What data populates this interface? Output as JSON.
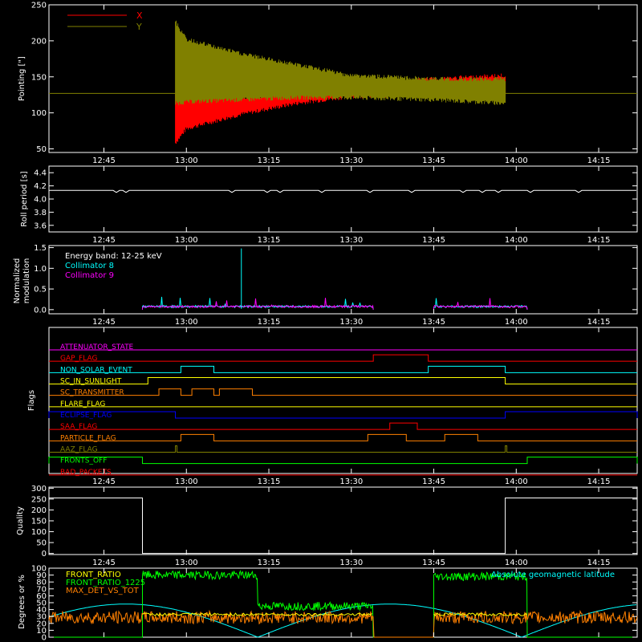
{
  "time_ticks": [
    "12:45",
    "13:00",
    "13:15",
    "13:30",
    "13:45",
    "14:00",
    "14:15"
  ],
  "time_range": [
    "12:35",
    "14:22"
  ],
  "chart_data": [
    {
      "id": "pointing",
      "type": "line",
      "ylabel": "Pointing [\"]",
      "ylim": [
        45,
        250
      ],
      "yticks": [
        50,
        100,
        150,
        200,
        250
      ],
      "series": [
        {
          "name": "X",
          "color": "#ff0000",
          "envelope": {
            "t": [
              "12:58",
              "13:00",
              "13:10",
              "13:20",
              "13:30",
              "13:45",
              "13:58"
            ],
            "lo": [
              55,
              75,
              95,
              110,
              120,
              122,
              122
            ],
            "hi": [
              130,
              125,
              125,
              130,
              140,
              150,
              155
            ]
          }
        },
        {
          "name": "Y",
          "color": "#808000",
          "envelope": {
            "t": [
              "12:58",
              "13:00",
              "13:10",
              "13:20",
              "13:30",
              "13:45",
              "13:58"
            ],
            "lo": [
              110,
              112,
              115,
              118,
              118,
              115,
              110
            ],
            "hi": [
              230,
              205,
              185,
              170,
              155,
              150,
              150
            ]
          }
        }
      ],
      "baseline": 127,
      "active": [
        "12:58",
        "13:58"
      ]
    },
    {
      "id": "roll",
      "type": "line",
      "ylabel": "Roll period [s]",
      "ylim": [
        3.5,
        4.5
      ],
      "yticks": [
        "3.6",
        "3.8",
        "4.0",
        "4.2",
        "4.4"
      ],
      "series": [
        {
          "name": "",
          "color": "#ffffff",
          "value": 4.13
        }
      ]
    },
    {
      "id": "modulation",
      "type": "line",
      "ylabel_lines": [
        "Normalized",
        "modulation"
      ],
      "ylim": [
        -0.1,
        1.55
      ],
      "yticks": [
        "0.0",
        "0.5",
        "1.0",
        "1.5"
      ],
      "annotations": [
        "Energy band: 12-25 keV",
        "Collimator 8",
        "Collimator 9"
      ],
      "series": [
        {
          "name": "Collimator 8",
          "color": "#00ffff",
          "segments": [
            [
              "12:52",
              "13:34"
            ],
            [
              "13:45",
              "14:02"
            ]
          ],
          "level": 0.05
        },
        {
          "name": "Collimator 9",
          "color": "#ff00ff",
          "segments": [
            [
              "12:52",
              "13:34"
            ],
            [
              "13:45",
              "14:02"
            ]
          ],
          "level": 0.05
        }
      ],
      "spike": {
        "t": "13:10",
        "value": 1.48
      }
    },
    {
      "id": "flags",
      "type": "line",
      "ylabel": "Flags",
      "flags": [
        {
          "name": "ATTENUATOR_STATE",
          "color": "#ff00ff",
          "high": []
        },
        {
          "name": "GAP_FLAG",
          "color": "#ff0000",
          "high": [
            [
              "13:34",
              "13:44"
            ]
          ]
        },
        {
          "name": "NON_SOLAR_EVENT",
          "color": "#00ffff",
          "high": [
            [
              "12:59",
              "13:05"
            ],
            [
              "13:44",
              "13:58"
            ]
          ]
        },
        {
          "name": "SC_IN_SUNLIGHT",
          "color": "#ffff00",
          "high": [
            [
              "12:53",
              "13:58"
            ]
          ]
        },
        {
          "name": "SC_TRANSMITTER",
          "color": "#ff8000",
          "high": [
            [
              "12:55",
              "12:59"
            ],
            [
              "13:01",
              "13:05"
            ],
            [
              "13:06",
              "13:12"
            ]
          ]
        },
        {
          "name": "FLARE_FLAG",
          "color": "#ffff00",
          "high": []
        },
        {
          "name": "ECLIPSE_FLAG",
          "color": "#0000ff",
          "high": [
            [
              "12:35",
              "12:58"
            ],
            [
              "13:58",
              "14:22"
            ]
          ]
        },
        {
          "name": "SAA_FLAG",
          "color": "#ff0000",
          "high": [
            [
              "13:37",
              "13:42"
            ]
          ]
        },
        {
          "name": "PARTICLE_FLAG",
          "color": "#ff8000",
          "high": [
            [
              "12:59",
              "13:05"
            ],
            [
              "13:33",
              "13:40"
            ],
            [
              "13:47",
              "13:53"
            ]
          ]
        },
        {
          "name": "AAZ_FLAG",
          "color": "#808000",
          "high": [
            [
              "12:58",
              "12:58"
            ],
            [
              "13:58",
              "13:58"
            ]
          ]
        },
        {
          "name": "FRONTS_OFF",
          "color": "#00ff00",
          "high": [
            [
              "12:35",
              "12:52"
            ],
            [
              "14:02",
              "14:22"
            ]
          ]
        },
        {
          "name": "BAD_PACKETS",
          "color": "#ff0000",
          "high": []
        }
      ]
    },
    {
      "id": "quality",
      "type": "line",
      "ylabel": "Quality",
      "ylim": [
        -5,
        305
      ],
      "yticks": [
        "0",
        "50",
        "100",
        "150",
        "200",
        "250",
        "300"
      ],
      "series": [
        {
          "name": "",
          "color": "#ffffff",
          "points": [
            [
              "12:35",
              255
            ],
            [
              "12:52",
              255
            ],
            [
              "12:52",
              0
            ],
            [
              "13:58",
              0
            ],
            [
              "13:58",
              255
            ],
            [
              "14:22",
              255
            ]
          ]
        }
      ]
    },
    {
      "id": "ratios",
      "type": "line",
      "ylabel": "Degrees or %",
      "ylim": [
        0,
        100
      ],
      "yticks": [
        "0",
        "10",
        "20",
        "30",
        "40",
        "50",
        "60",
        "70",
        "80",
        "90",
        "100"
      ],
      "annotations": [
        "FRONT_RATIO",
        "FRONT_RATIO_1225",
        "MAX_DET_VS_TOT",
        "Absolute geomagnetic latitude"
      ],
      "series": [
        {
          "name": "FRONT_RATIO",
          "color": "#ffff00"
        },
        {
          "name": "FRONT_RATIO_1225",
          "color": "#00ff00"
        },
        {
          "name": "MAX_DET_VS_TOT",
          "color": "#ff8000"
        },
        {
          "name": "Absolute geomagnetic latitude",
          "color": "#00ffff"
        }
      ]
    }
  ],
  "colors": {
    "axis": "#ffffff",
    "background": "#000000"
  }
}
